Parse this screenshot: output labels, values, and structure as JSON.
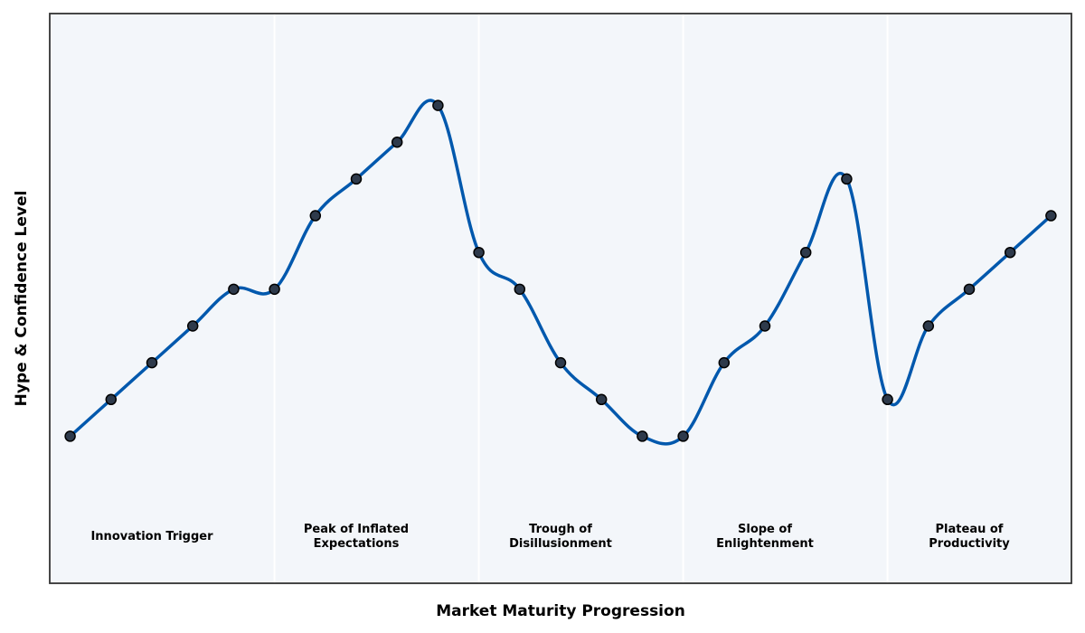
{
  "chart_data": {
    "type": "line",
    "title": "",
    "xlabel": "Market Maturity Progression",
    "ylabel": "Hype & Confidence Level",
    "ylim": [
      0,
      15.5
    ],
    "xlim": [
      -0.5,
      24.5
    ],
    "grid": false,
    "legend": "none",
    "x": [
      0,
      1,
      2,
      3,
      4,
      5,
      6,
      7,
      8,
      9,
      10,
      11,
      12,
      13,
      14,
      15,
      16,
      17,
      18,
      19,
      20,
      21,
      22,
      23,
      24
    ],
    "series": [
      {
        "values": [
          4,
          5,
          6,
          7,
          8,
          8,
          10,
          11,
          12,
          13,
          9,
          8,
          6,
          5,
          4,
          4,
          6,
          7,
          9,
          11,
          5,
          7,
          8,
          9,
          10
        ]
      }
    ],
    "phases": [
      {
        "label_lines": [
          "Innovation Trigger"
        ],
        "x_start": -0.5,
        "x_end": 5,
        "x_center": 2
      },
      {
        "label_lines": [
          "Peak of Inflated",
          "Expectations"
        ],
        "x_start": 5,
        "x_end": 10,
        "x_center": 7
      },
      {
        "label_lines": [
          "Trough of",
          "Disillusionment"
        ],
        "x_start": 10,
        "x_end": 15,
        "x_center": 12
      },
      {
        "label_lines": [
          "Slope of",
          "Enlightenment"
        ],
        "x_start": 15,
        "x_end": 20,
        "x_center": 17
      },
      {
        "label_lines": [
          "Plateau of",
          "Productivity"
        ],
        "x_start": 20,
        "x_end": 24.5,
        "x_center": 22
      }
    ],
    "phase_label_y": 1.3,
    "colors": {
      "line": "#0058ad",
      "marker_fill": "#2e3a4b",
      "marker_edge": "#000000",
      "plot_background": "#f3f6fa",
      "phase_divider": "#ffffff",
      "axes_frame": "#333333"
    }
  }
}
